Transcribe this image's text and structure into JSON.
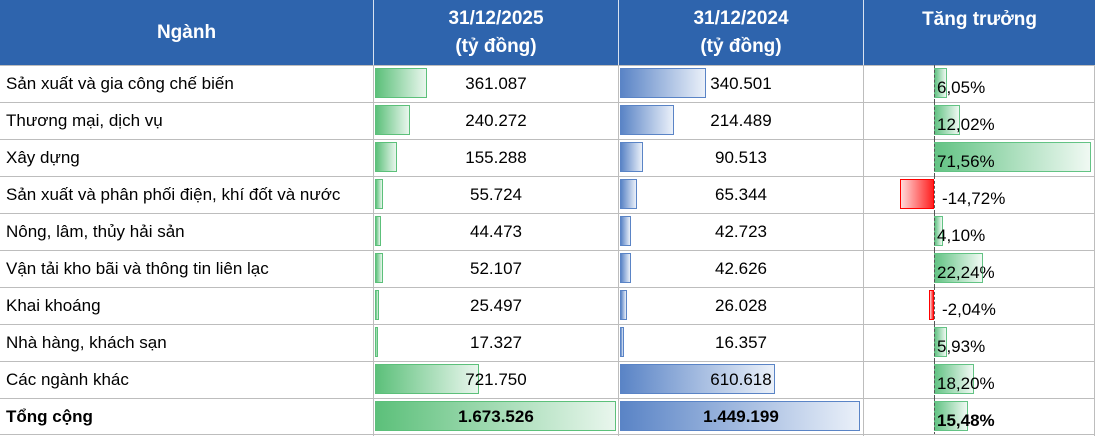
{
  "header": {
    "sector": "Ngành",
    "col2025_line1": "31/12/2025",
    "col2025_line2": "(tỷ đồng)",
    "col2024_line1": "31/12/2024",
    "col2024_line2": "(tỷ đồng)",
    "growth": "Tăng trưởng"
  },
  "colors": {
    "header_bg": "#2e64ad",
    "bar2025": "#5cc07a",
    "bar2024": "#5a84c6",
    "growth_pos": "#63c384",
    "growth_neg": "#ff0000"
  },
  "rows": [
    {
      "name": "Sản xuất và gia công chế biến",
      "v2025": "361.087",
      "v2024": "340.501",
      "growth": "6,05%"
    },
    {
      "name": "Thương mại, dịch vụ",
      "v2025": "240.272",
      "v2024": "214.489",
      "growth": "12,02%"
    },
    {
      "name": "Xây dựng",
      "v2025": "155.288",
      "v2024": "90.513",
      "growth": "71,56%"
    },
    {
      "name": "Sản xuất và phân phối điện, khí đốt và nước",
      "v2025": "55.724",
      "v2024": "65.344",
      "growth": "-14,72%"
    },
    {
      "name": "Nông, lâm, thủy hải sản",
      "v2025": "44.473",
      "v2024": "42.723",
      "growth": "4,10%"
    },
    {
      "name": "Vận tải kho bãi và thông tin liên lạc",
      "v2025": "52.107",
      "v2024": "42.626",
      "growth": "22,24%"
    },
    {
      "name": "Khai khoáng",
      "v2025": "25.497",
      "v2024": "26.028",
      "growth": "-2,04%"
    },
    {
      "name": "Nhà hàng, khách sạn",
      "v2025": "17.327",
      "v2024": "16.357",
      "growth": "5,93%"
    },
    {
      "name": "Các ngành khác",
      "v2025": "721.750",
      "v2024": "610.618",
      "growth": "18,20%"
    }
  ],
  "total": {
    "name": "Tổng cộng",
    "v2025": "1.673.526",
    "v2024": "1.449.199",
    "growth": "15,48%"
  }
}
